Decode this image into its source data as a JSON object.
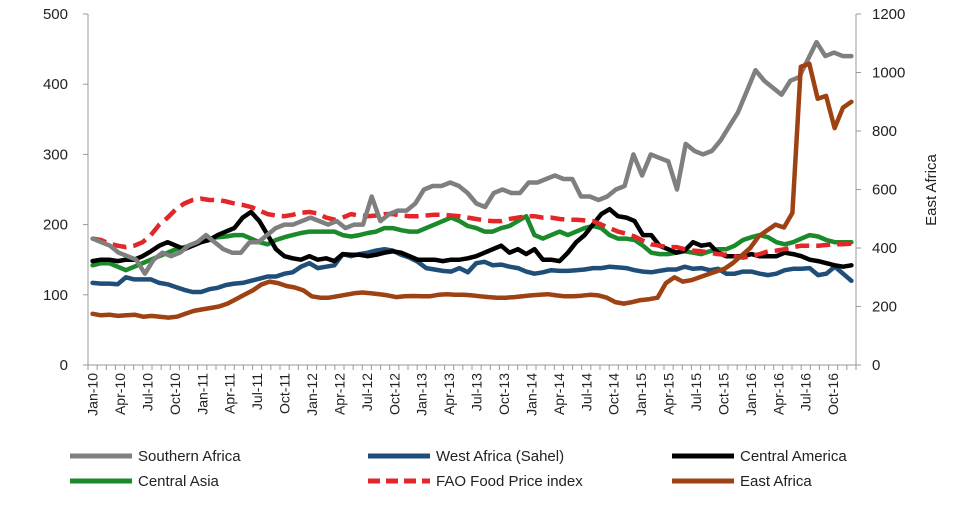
{
  "chart_data": {
    "type": "line",
    "title": "",
    "xlabel": "",
    "ylabel": "",
    "y2label": "East Africa",
    "ylim": [
      0,
      500
    ],
    "y2lim": [
      0,
      1200
    ],
    "yticks": [
      "0",
      "100",
      "200",
      "300",
      "400",
      "500"
    ],
    "y2ticks": [
      "0",
      "200",
      "400",
      "600",
      "800",
      "1000",
      "1200"
    ],
    "x_tick_labels": [
      "Jan-10",
      "Apr-10",
      "Jul-10",
      "Oct-10",
      "Jan-11",
      "Apr-11",
      "Jul-11",
      "Oct-11",
      "Jan-12",
      "Apr-12",
      "Jul-12",
      "Oct-12",
      "Jan-13",
      "Apr-13",
      "Jul-13",
      "Oct-13",
      "Jan-14",
      "Apr-14",
      "Jul-14",
      "Oct-14",
      "Jan-15",
      "Apr-15",
      "Jul-15",
      "Oct-15",
      "Jan-16",
      "Apr-16",
      "Jul-16",
      "Oct-16"
    ],
    "grid": false,
    "legend_position": "bottom",
    "series": [
      {
        "name": "Southern Africa",
        "color": "#7f7f7f",
        "dash": false,
        "axis": "left",
        "values": [
          180,
          175,
          170,
          160,
          155,
          150,
          130,
          150,
          160,
          155,
          160,
          170,
          175,
          185,
          175,
          165,
          160,
          160,
          175,
          175,
          185,
          195,
          200,
          200,
          205,
          210,
          205,
          200,
          205,
          195,
          200,
          200,
          240,
          205,
          215,
          220,
          220,
          230,
          250,
          255,
          255,
          260,
          255,
          245,
          230,
          225,
          245,
          250,
          245,
          245,
          260,
          260,
          265,
          270,
          265,
          265,
          240,
          240,
          235,
          240,
          250,
          255,
          300,
          270,
          300,
          295,
          290,
          250,
          315,
          305,
          300,
          305,
          320,
          340,
          360,
          390,
          420,
          405,
          395,
          385,
          405,
          410,
          435,
          460,
          440,
          445,
          440,
          440
        ]
      },
      {
        "name": "West Africa (Sahel)",
        "color": "#1f4e79",
        "dash": false,
        "axis": "left",
        "values": [
          117,
          116,
          116,
          115,
          125,
          122,
          122,
          122,
          117,
          115,
          111,
          107,
          104,
          104,
          108,
          110,
          114,
          116,
          117,
          120,
          123,
          126,
          126,
          130,
          132,
          140,
          145,
          138,
          140,
          142,
          158,
          155,
          158,
          160,
          163,
          165,
          163,
          157,
          153,
          147,
          138,
          136,
          134,
          133,
          138,
          132,
          145,
          147,
          142,
          143,
          140,
          138,
          133,
          130,
          132,
          135,
          134,
          134,
          135,
          136,
          138,
          138,
          140,
          139,
          138,
          135,
          133,
          132,
          134,
          136,
          136,
          140,
          137,
          138,
          135,
          137,
          130,
          130,
          133,
          133,
          130,
          128,
          130,
          135,
          137,
          137,
          138,
          128,
          130,
          140,
          130,
          120
        ]
      },
      {
        "name": "Central America",
        "color": "#000000",
        "dash": false,
        "axis": "left",
        "values": [
          148,
          150,
          150,
          148,
          150,
          150,
          155,
          162,
          170,
          175,
          170,
          165,
          170,
          175,
          178,
          185,
          190,
          195,
          210,
          218,
          205,
          185,
          165,
          155,
          152,
          150,
          155,
          150,
          152,
          148,
          158,
          157,
          157,
          155,
          157,
          160,
          162,
          160,
          155,
          150,
          150,
          150,
          148,
          150,
          150,
          152,
          155,
          160,
          165,
          170,
          160,
          165,
          158,
          165,
          150,
          150,
          148,
          160,
          175,
          185,
          200,
          215,
          222,
          212,
          210,
          205,
          185,
          185,
          170,
          165,
          160,
          163,
          175,
          170,
          172,
          160,
          155,
          155,
          155,
          158,
          155,
          155,
          155,
          160,
          158,
          155,
          150,
          148,
          145,
          142,
          140,
          142
        ]
      },
      {
        "name": "Central Asia",
        "color": "#1a8a2a",
        "dash": false,
        "axis": "left",
        "values": [
          142,
          145,
          145,
          140,
          135,
          140,
          145,
          150,
          155,
          160,
          165,
          168,
          170,
          175,
          180,
          182,
          183,
          185,
          185,
          180,
          175,
          172,
          178,
          182,
          185,
          188,
          190,
          190,
          190,
          190,
          185,
          183,
          185,
          188,
          190,
          195,
          195,
          192,
          190,
          190,
          195,
          200,
          205,
          210,
          205,
          198,
          195,
          190,
          190,
          195,
          198,
          205,
          212,
          185,
          180,
          185,
          190,
          185,
          190,
          195,
          198,
          195,
          185,
          180,
          180,
          178,
          170,
          160,
          158,
          158,
          160,
          162,
          160,
          158,
          162,
          165,
          165,
          170,
          178,
          182,
          185,
          182,
          175,
          172,
          175,
          180,
          185,
          183,
          178,
          175,
          175,
          175
        ]
      },
      {
        "name": "FAO Food Price index",
        "color": "#e3262a",
        "dash": true,
        "axis": "left",
        "values": [
          180,
          178,
          173,
          170,
          168,
          170,
          175,
          185,
          200,
          210,
          222,
          230,
          235,
          237,
          235,
          235,
          233,
          230,
          228,
          225,
          220,
          215,
          213,
          212,
          214,
          217,
          218,
          216,
          210,
          207,
          210,
          215,
          213,
          212,
          213,
          215,
          215,
          213,
          212,
          212,
          213,
          214,
          214,
          213,
          212,
          210,
          208,
          206,
          205,
          205,
          208,
          210,
          212,
          212,
          210,
          210,
          208,
          207,
          207,
          206,
          205,
          200,
          195,
          190,
          187,
          183,
          177,
          172,
          170,
          168,
          168,
          165,
          163,
          162,
          160,
          158,
          157,
          155,
          153,
          155,
          158,
          162,
          163,
          165,
          168,
          170,
          170,
          170,
          171,
          172,
          172,
          173
        ]
      },
      {
        "name": "East Africa",
        "color": "#9e4214",
        "dash": false,
        "axis": "right",
        "values": [
          175,
          170,
          172,
          168,
          170,
          172,
          165,
          168,
          165,
          162,
          165,
          175,
          185,
          190,
          195,
          200,
          210,
          225,
          240,
          255,
          275,
          285,
          280,
          270,
          265,
          255,
          235,
          230,
          230,
          235,
          240,
          245,
          248,
          245,
          242,
          238,
          232,
          235,
          236,
          235,
          235,
          240,
          242,
          240,
          240,
          238,
          235,
          232,
          230,
          230,
          232,
          235,
          238,
          240,
          242,
          238,
          235,
          235,
          237,
          240,
          238,
          230,
          215,
          210,
          215,
          222,
          225,
          230,
          280,
          300,
          285,
          290,
          300,
          310,
          320,
          330,
          350,
          375,
          400,
          440,
          460,
          480,
          470,
          520,
          1020,
          1030,
          910,
          920,
          810,
          880,
          900
        ]
      }
    ]
  }
}
